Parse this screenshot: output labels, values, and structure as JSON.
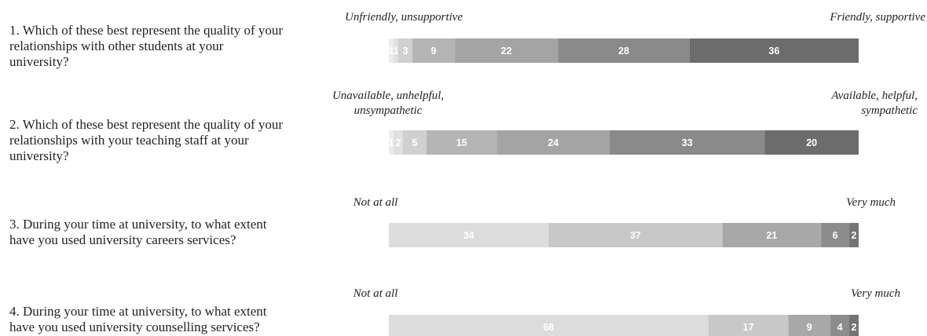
{
  "chart_data": {
    "type": "bar",
    "orientation": "horizontal",
    "stacked": true,
    "value_labels_visible": true,
    "items": [
      {
        "question": "1. Which of these best represent the quality of your\nrelationships with other students at your\nuniversity?",
        "low_label": "Unfriendly, unsupportive",
        "high_label": "Friendly, supportive",
        "values": [
          1,
          1,
          3,
          9,
          22,
          28,
          36
        ]
      },
      {
        "question": "2. Which of these best represent the quality of your\nrelationships with your teaching staff at your\nuniversity?",
        "low_label": "Unavailable, unhelpful,\nunsympathetic",
        "high_label": "Available, helpful,\nsympathetic",
        "values": [
          1,
          2,
          5,
          15,
          24,
          33,
          20
        ]
      },
      {
        "question": "3. During your time at university, to what extent\nhave you used university careers services?",
        "low_label": "Not at all",
        "high_label": "Very much",
        "values": [
          34,
          37,
          21,
          6,
          2
        ]
      },
      {
        "question": "4. During your time at university, to what extent\nhave you used university counselling services?",
        "low_label": "Not at all",
        "high_label": "Very much",
        "values": [
          68,
          17,
          9,
          4,
          2
        ]
      }
    ],
    "colors": {
      "seven_point": [
        "#ececec",
        "#e0e0e0",
        "#d0d0d0",
        "#b4b4b4",
        "#a4a4a4",
        "#8a8a8a",
        "#6c6c6c"
      ],
      "five_point": [
        "#dcdcdc",
        "#c8c8c8",
        "#a8a8a8",
        "#8c8c8c",
        "#747474"
      ]
    }
  }
}
